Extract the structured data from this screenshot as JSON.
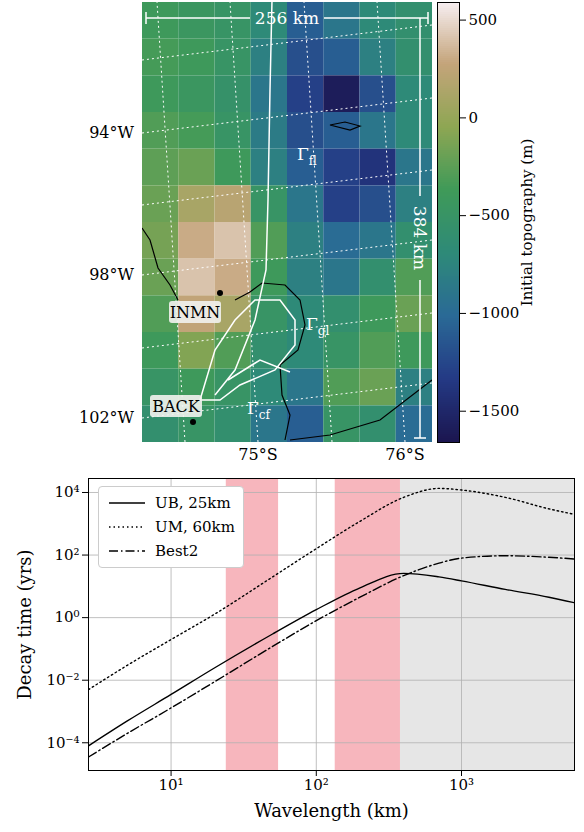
{
  "chart_data": [
    {
      "type": "heatmap",
      "values": [
        [
          -400,
          -450,
          -500,
          -700,
          -1100,
          -900,
          -700,
          -600
        ],
        [
          -350,
          -400,
          -500,
          -800,
          -1200,
          -1100,
          -800,
          -600
        ],
        [
          -400,
          -450,
          -550,
          -900,
          -1300,
          -1600,
          -1200,
          -700
        ],
        [
          -300,
          -350,
          -500,
          -850,
          -1200,
          -1100,
          -900,
          -700
        ],
        [
          -250,
          -200,
          -400,
          -800,
          -1100,
          -1300,
          -1400,
          -900
        ],
        [
          -200,
          100,
          200,
          -500,
          -900,
          -1300,
          -1200,
          -800
        ],
        [
          -150,
          300,
          400,
          -300,
          -800,
          -1000,
          -900,
          -600
        ],
        [
          -200,
          400,
          300,
          -400,
          -800,
          -900,
          -600,
          -300
        ],
        [
          -300,
          250,
          100,
          -500,
          -700,
          -600,
          -400,
          -200
        ],
        [
          -400,
          -100,
          -300,
          -600,
          -700,
          -500,
          -300,
          -400
        ],
        [
          -500,
          -400,
          -500,
          -700,
          -900,
          -300,
          -200,
          -800
        ],
        [
          -600,
          -500,
          -600,
          -900,
          -1100,
          -500,
          -600,
          -1000
        ]
      ],
      "colors": [
        "#1b1650",
        "#243a85",
        "#2a6a96",
        "#2e8a78",
        "#3f9a58",
        "#8ea653",
        "#c4a47a",
        "#f8f0f4"
      ],
      "colorbar": {
        "label": "Initial topography (m)",
        "lim": [
          -1660,
          590
        ],
        "ticks": [
          -1500,
          -1000,
          -500,
          0,
          500
        ]
      },
      "lon_labels": [
        "94°W",
        "98°W",
        "102°W"
      ],
      "lat_labels": [
        "75°S",
        "76°S"
      ],
      "annotations": [
        "256 km",
        "384 km",
        "Γfl",
        "Γgl",
        "Γcf",
        "INMN",
        "BACK"
      ]
    },
    {
      "type": "line",
      "xlabel": "Wavelength (km)",
      "ylabel": "Decay time (yrs)",
      "log": true,
      "grid": true,
      "legend": "upper left",
      "xlim": [
        2.7,
        6000
      ],
      "ylim": [
        1.3e-05,
        28000
      ],
      "xticks": [
        {
          "value": 10,
          "label": "10¹"
        },
        {
          "value": 100,
          "label": "10²"
        },
        {
          "value": 1000,
          "label": "10³"
        }
      ],
      "yticks": [
        {
          "value": 0.0001,
          "label": "10⁻⁴"
        },
        {
          "value": 0.01,
          "label": "10⁻²"
        },
        {
          "value": 1,
          "label": "10⁰"
        },
        {
          "value": 100,
          "label": "10²"
        },
        {
          "value": 10000,
          "label": "10⁴"
        }
      ],
      "x": [
        2.7,
        5,
        10,
        20,
        50,
        100,
        200,
        400,
        700,
        1000,
        2000,
        4000,
        6000
      ],
      "series": [
        {
          "name": "UB, 25km",
          "color": "#000000",
          "line_style": "solid",
          "values": [
            8e-05,
            0.0005,
            0.0035,
            0.025,
            0.3,
            1.8,
            9,
            26,
            20,
            15,
            8,
            4.5,
            3
          ]
        },
        {
          "name": "UM, 60km",
          "color": "#000000",
          "line_style": "dotted",
          "values": [
            0.005,
            0.03,
            0.2,
            1.3,
            20,
            160,
            1200,
            7000,
            13500,
            12000,
            7000,
            3000,
            2000
          ]
        },
        {
          "name": "Best2",
          "color": "#000000",
          "line_style": "dashdot",
          "values": [
            3.5e-05,
            0.0002,
            0.0013,
            0.009,
            0.12,
            0.8,
            4.5,
            22,
            55,
            80,
            95,
            85,
            75
          ]
        }
      ],
      "bands": [
        {
          "x1": 24,
          "x2": 55,
          "color": "#f7b6bd"
        },
        {
          "x1": 135,
          "x2": 380,
          "color": "#f7b6bd"
        },
        {
          "x1": 380,
          "x2": 6000,
          "color": "#e6e6e6"
        }
      ]
    }
  ]
}
